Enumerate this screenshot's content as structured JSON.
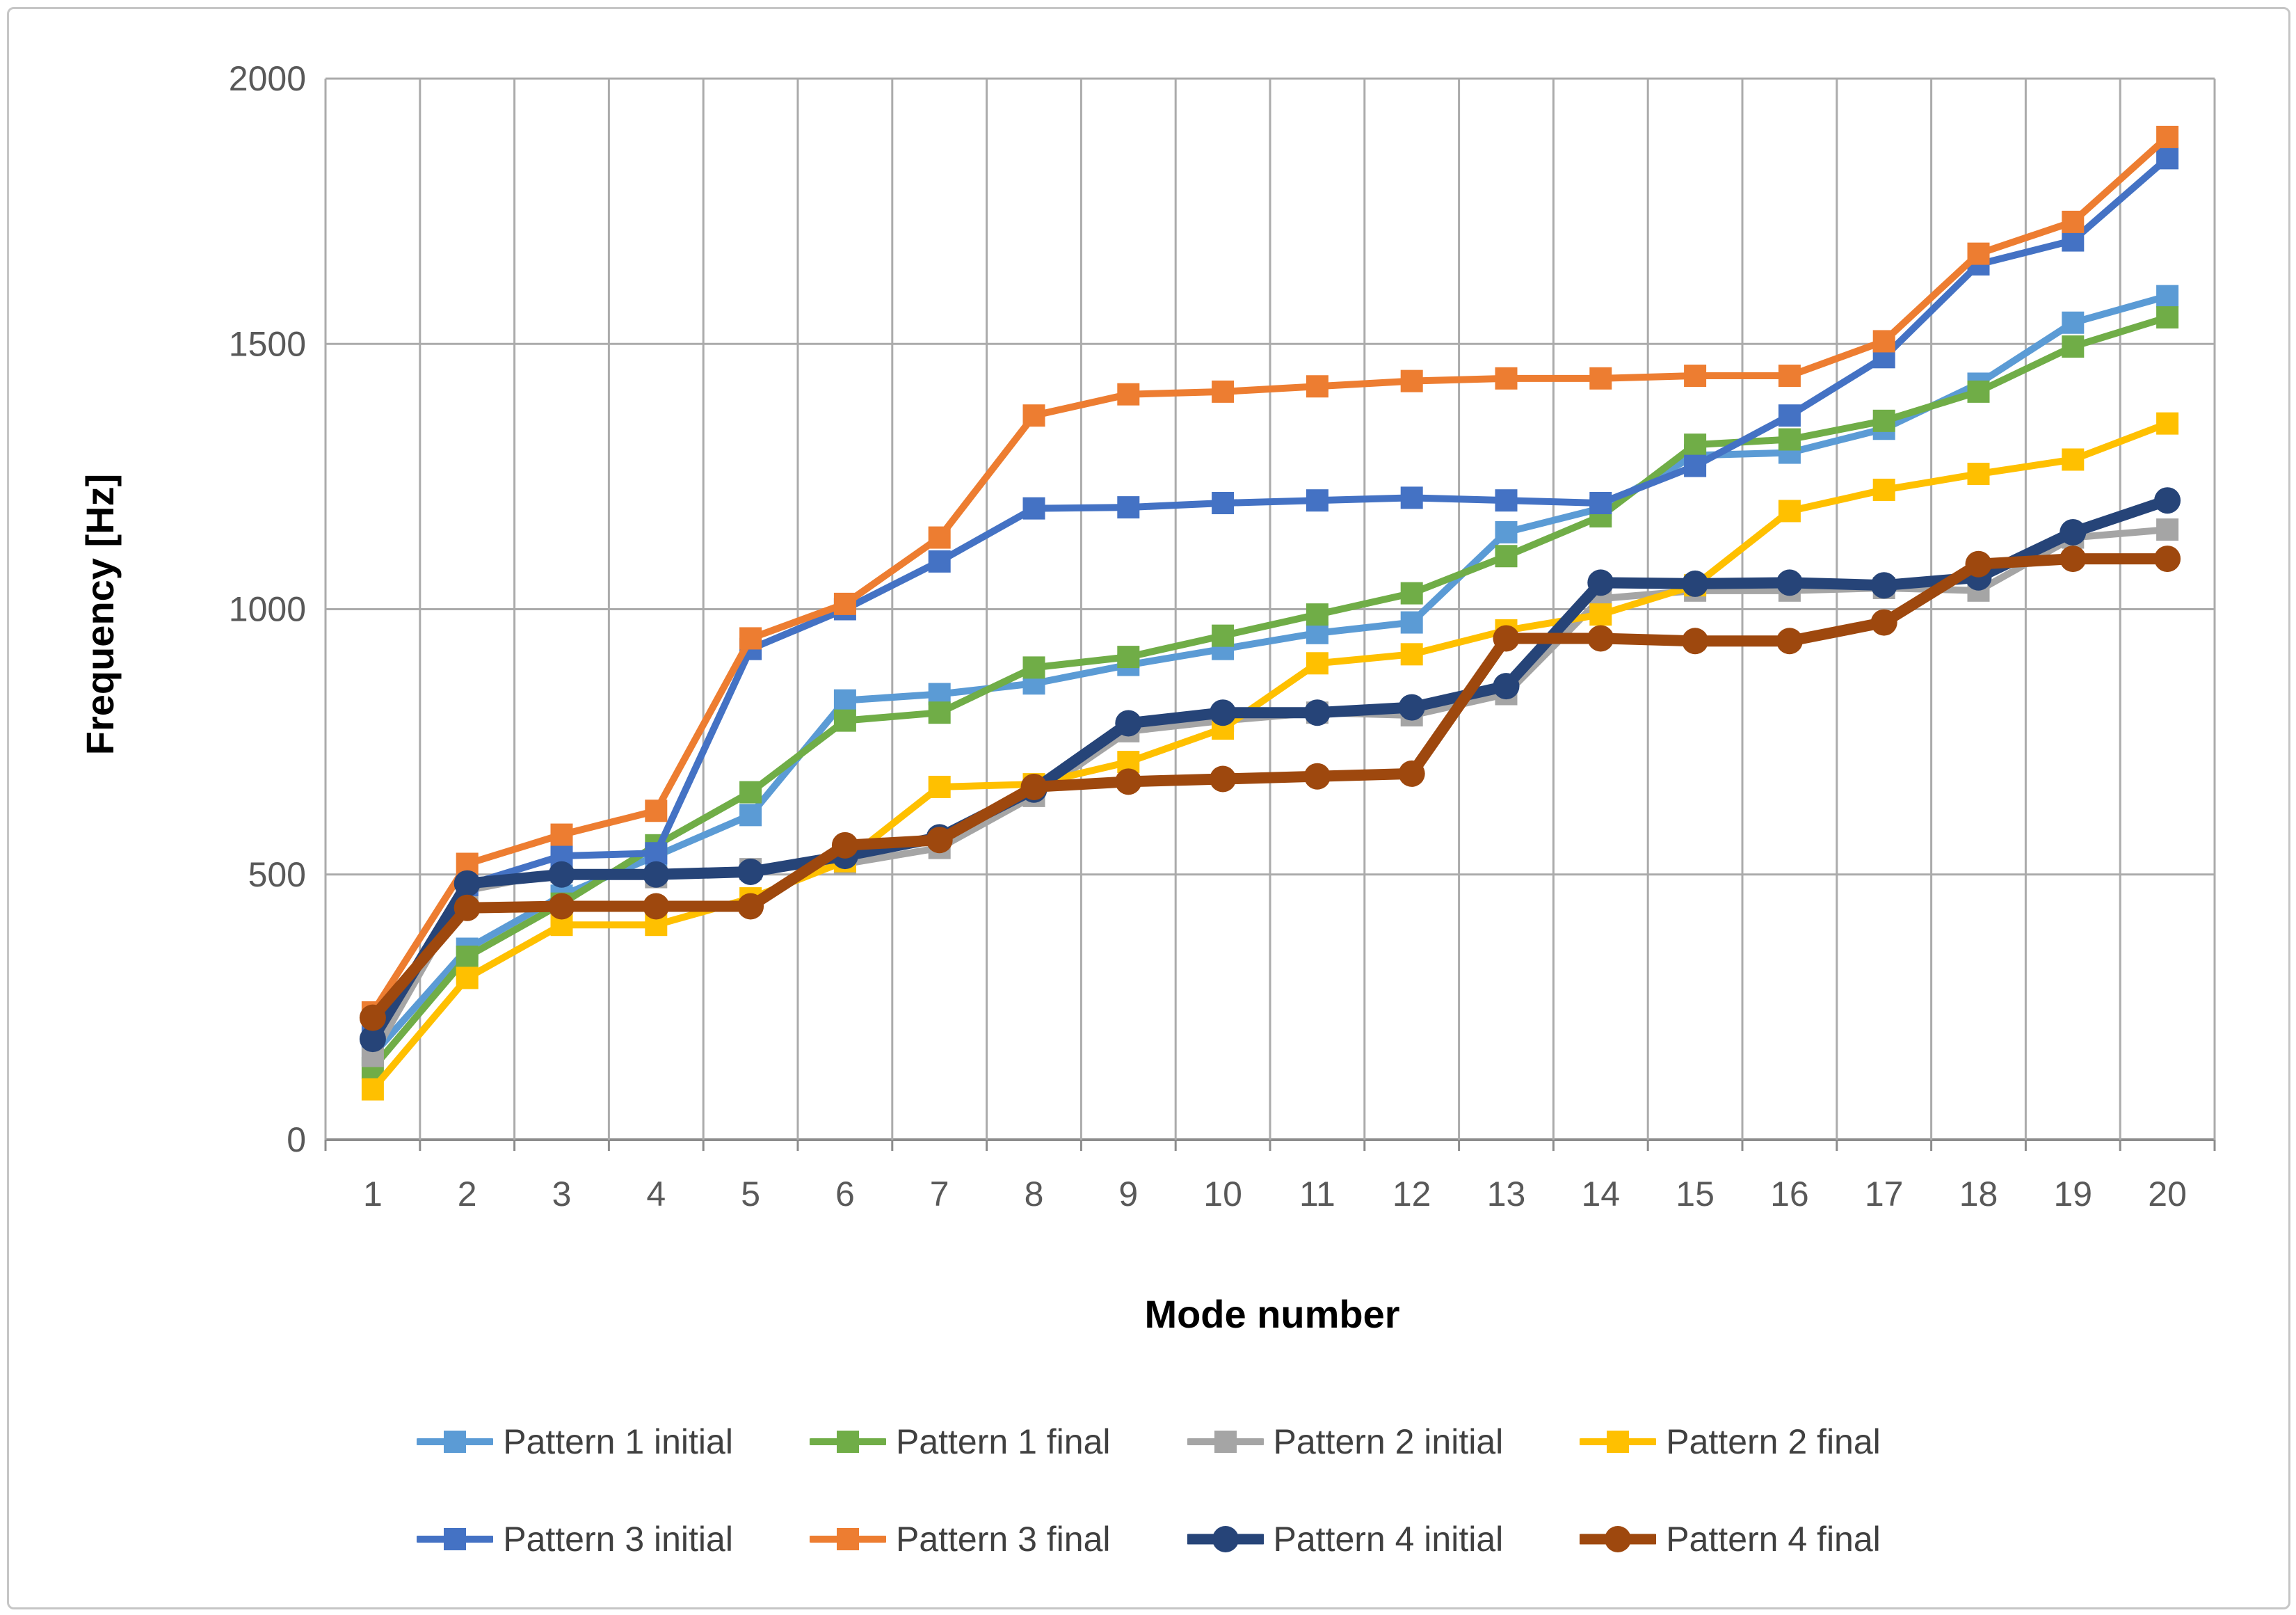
{
  "chart_data": {
    "type": "line",
    "title": "",
    "xlabel": "Mode number",
    "ylabel": "Frequency [Hz]",
    "x": [
      1,
      2,
      3,
      4,
      5,
      6,
      7,
      8,
      9,
      10,
      11,
      12,
      13,
      14,
      15,
      16,
      17,
      18,
      19,
      20
    ],
    "xtick_labels": [
      "1",
      "2",
      "3",
      "4",
      "5",
      "6",
      "7",
      "8",
      "9",
      "10",
      "11",
      "12",
      "13",
      "14",
      "15",
      "16",
      "17",
      "18",
      "19",
      "20"
    ],
    "ylim": [
      0,
      2000
    ],
    "yticks": [
      0,
      500,
      1000,
      1500,
      2000
    ],
    "ytick_labels": [
      "0",
      "500",
      "1000",
      "1500",
      "2000"
    ],
    "grid": "vertical lines at every category boundary; horizontal lines at 500 Hz steps",
    "legend_position": "bottom, two rows",
    "series": [
      {
        "name": "Pattern 1 initial",
        "color": "#5B9BD5",
        "marker": "square",
        "values": [
          160,
          360,
          460,
          535,
          612,
          828,
          840,
          860,
          895,
          925,
          955,
          975,
          1145,
          1190,
          1290,
          1295,
          1340,
          1425,
          1540,
          1590
        ]
      },
      {
        "name": "Pattern 1 final",
        "color": "#70AD47",
        "marker": "square",
        "values": [
          135,
          345,
          445,
          555,
          655,
          790,
          805,
          890,
          910,
          950,
          990,
          1030,
          1100,
          1175,
          1310,
          1320,
          1355,
          1410,
          1495,
          1550
        ]
      },
      {
        "name": "Pattern 2 initial",
        "color": "#A5A5A5",
        "marker": "square",
        "values": [
          158,
          470,
          505,
          495,
          510,
          520,
          550,
          648,
          770,
          790,
          805,
          800,
          840,
          1020,
          1035,
          1035,
          1040,
          1035,
          1135,
          1150
        ]
      },
      {
        "name": "Pattern 2 final",
        "color": "#FFC000",
        "marker": "square",
        "values": [
          95,
          305,
          405,
          405,
          455,
          525,
          665,
          670,
          712,
          775,
          898,
          915,
          960,
          990,
          1045,
          1185,
          1225,
          1255,
          1282,
          1350
        ]
      },
      {
        "name": "Pattern 3 initial",
        "color": "#4472C4",
        "marker": "square",
        "values": [
          195,
          480,
          535,
          540,
          925,
          1000,
          1090,
          1190,
          1192,
          1200,
          1205,
          1210,
          1205,
          1200,
          1270,
          1365,
          1475,
          1650,
          1695,
          1850
        ]
      },
      {
        "name": "Pattern 3 final",
        "color": "#ED7D31",
        "marker": "square",
        "values": [
          240,
          520,
          575,
          620,
          945,
          1010,
          1135,
          1365,
          1405,
          1410,
          1420,
          1430,
          1435,
          1435,
          1440,
          1440,
          1505,
          1670,
          1730,
          1890
        ]
      },
      {
        "name": "Pattern 4 initial",
        "color": "#264478",
        "marker": "circle",
        "values": [
          190,
          483,
          500,
          500,
          505,
          535,
          570,
          660,
          785,
          805,
          805,
          815,
          855,
          1050,
          1048,
          1050,
          1045,
          1060,
          1145,
          1205
        ]
      },
      {
        "name": "Pattern 4 final",
        "color": "#9E480E",
        "marker": "circle",
        "values": [
          230,
          437,
          440,
          440,
          440,
          555,
          565,
          665,
          675,
          680,
          685,
          690,
          945,
          945,
          940,
          940,
          975,
          1085,
          1095,
          1095
        ]
      }
    ],
    "colors": {
      "gridline": "#ABABAB",
      "axis_line": "#8C8C8C",
      "tick_label": "#595959",
      "axis_title": "#000000",
      "legend_text": "#404040"
    }
  }
}
